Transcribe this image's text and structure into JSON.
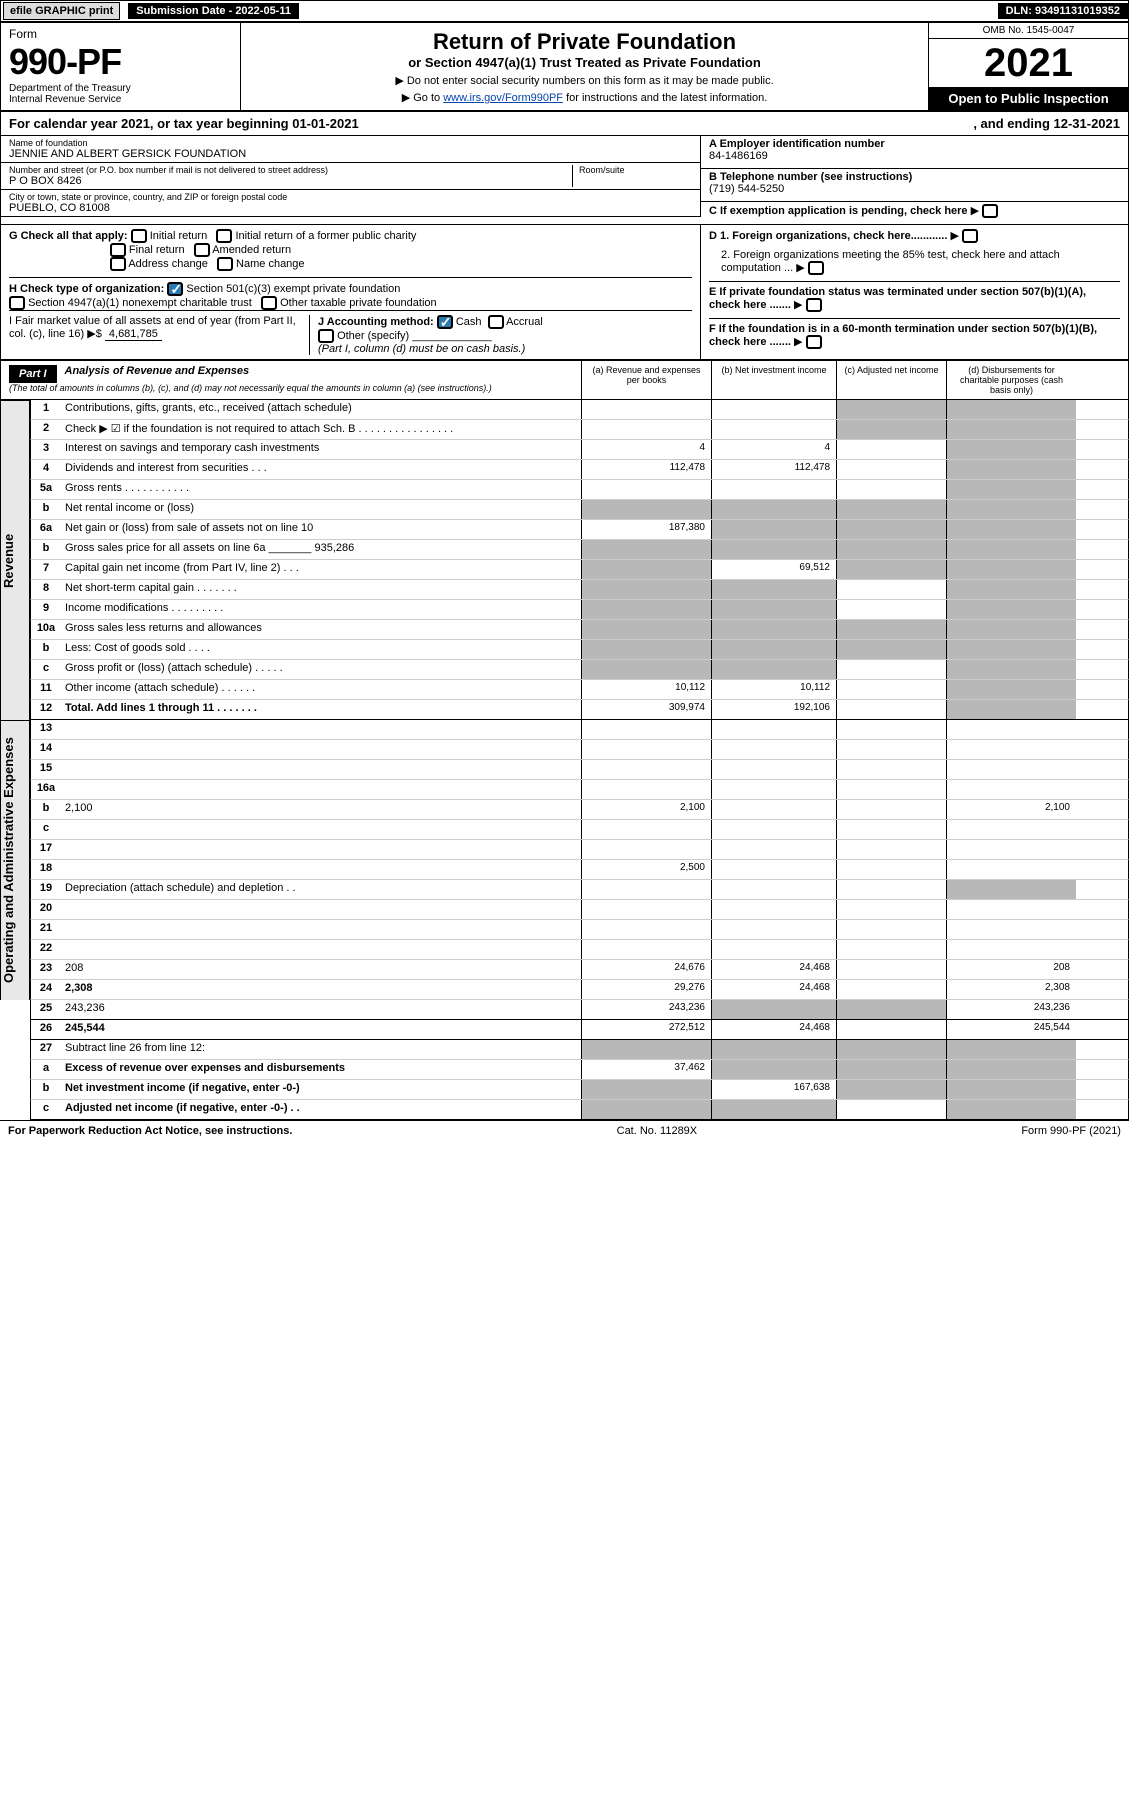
{
  "topbar": {
    "efile": "efile GRAPHIC print",
    "sublabel": "Submission Date - 2022-05-11",
    "dln": "DLN: 93491131019352"
  },
  "header": {
    "form_word": "Form",
    "form_num": "990-PF",
    "dept": "Department of the Treasury\nInternal Revenue Service",
    "title": "Return of Private Foundation",
    "subtitle": "or Section 4947(a)(1) Trust Treated as Private Foundation",
    "inst1": "▶ Do not enter social security numbers on this form as it may be made public.",
    "inst2": "▶ Go to ",
    "inst2_link": "www.irs.gov/Form990PF",
    "inst2_rest": " for instructions and the latest information.",
    "omb": "OMB No. 1545-0047",
    "year": "2021",
    "open": "Open to Public Inspection"
  },
  "calyear": {
    "a": "For calendar year 2021, or tax year beginning 01-01-2021",
    "b": ", and ending 12-31-2021"
  },
  "ident": {
    "name_label": "Name of foundation",
    "name": "JENNIE AND ALBERT GERSICK FOUNDATION",
    "street_label": "Number and street (or P.O. box number if mail is not delivered to street address)",
    "street": "P O BOX 8426",
    "room_label": "Room/suite",
    "city_label": "City or town, state or province, country, and ZIP or foreign postal code",
    "city": "PUEBLO, CO  81008",
    "ein_label": "A Employer identification number",
    "ein": "84-1486169",
    "tel_label": "B Telephone number (see instructions)",
    "tel": "(719) 544-5250",
    "c": "C If exemption application is pending, check here",
    "d1": "D 1. Foreign organizations, check here............",
    "d2": "2. Foreign organizations meeting the 85% test, check here and attach computation ...",
    "e": "E  If private foundation status was terminated under section 507(b)(1)(A), check here .......",
    "f": "F  If the foundation is in a 60-month termination under section 507(b)(1)(B), check here .......",
    "g_label": "G Check all that apply:",
    "g_opts": [
      "Initial return",
      "Initial return of a former public charity",
      "Final return",
      "Amended return",
      "Address change",
      "Name change"
    ],
    "h_label": "H Check type of organization:",
    "h1": "Section 501(c)(3) exempt private foundation",
    "h2": "Section 4947(a)(1) nonexempt charitable trust",
    "h3": "Other taxable private foundation",
    "i_label": "I Fair market value of all assets at end of year (from Part II, col. (c), line 16) ▶$",
    "i_val": "4,681,785",
    "j_label": "J Accounting method:",
    "j_cash": "Cash",
    "j_accrual": "Accrual",
    "j_other": "Other (specify)",
    "j_note": "(Part I, column (d) must be on cash basis.)"
  },
  "part1": {
    "label": "Part I",
    "title": "Analysis of Revenue and Expenses",
    "note": "(The total of amounts in columns (b), (c), and (d) may not necessarily equal the amounts in column (a) (see instructions).)",
    "colA": "(a)   Revenue and expenses per books",
    "colB": "(b)   Net investment income",
    "colC": "(c)   Adjusted net income",
    "colD": "(d)   Disbursements for charitable purposes (cash basis only)"
  },
  "side_labels": {
    "revenue": "Revenue",
    "expenses": "Operating and Administrative Expenses"
  },
  "rows": [
    {
      "n": "1",
      "d": "Contributions, gifts, grants, etc., received (attach schedule)",
      "a": "",
      "b": "",
      "cG": true,
      "dG": true
    },
    {
      "n": "2",
      "d": "Check ▶ ☑ if the foundation is not required to attach Sch. B  .  .  .  .  .  .  .  .  .  .  .  .  .  .  .  .",
      "a": "",
      "b": "",
      "cG": true,
      "dG": true,
      "greyAll": true
    },
    {
      "n": "3",
      "d": "Interest on savings and temporary cash investments",
      "a": "4",
      "b": "4",
      "cG": false,
      "dG": true
    },
    {
      "n": "4",
      "d": "Dividends and interest from securities   .   .   .",
      "a": "112,478",
      "b": "112,478",
      "cG": false,
      "dG": true
    },
    {
      "n": "5a",
      "d": "Gross rents   .   .   .   .   .   .   .   .   .   .   .",
      "a": "",
      "b": "",
      "cG": false,
      "dG": true
    },
    {
      "n": "b",
      "d": "Net rental income or (loss)  ",
      "a": "",
      "b": "",
      "aG": true,
      "bG": true,
      "cG": true,
      "dG": true
    },
    {
      "n": "6a",
      "d": "Net gain or (loss) from sale of assets not on line 10",
      "a": "187,380",
      "bG": true,
      "cG": true,
      "dG": true
    },
    {
      "n": "b",
      "d": "Gross sales price for all assets on line 6a _______ 935,286",
      "aG": true,
      "bG": true,
      "cG": true,
      "dG": true
    },
    {
      "n": "7",
      "d": "Capital gain net income (from Part IV, line 2)   .   .   .",
      "aG": true,
      "b": "69,512",
      "cG": true,
      "dG": true
    },
    {
      "n": "8",
      "d": "Net short-term capital gain   .   .   .   .   .   .   .",
      "aG": true,
      "bG": true,
      "cG": false,
      "dG": true
    },
    {
      "n": "9",
      "d": "Income modifications .   .   .   .   .   .   .   .   .",
      "aG": true,
      "bG": true,
      "cG": false,
      "dG": true
    },
    {
      "n": "10a",
      "d": "Gross sales less returns and allowances",
      "aG": true,
      "bG": true,
      "cG": true,
      "dG": true
    },
    {
      "n": "b",
      "d": "Less: Cost of goods sold   .   .   .   .",
      "aG": true,
      "bG": true,
      "cG": true,
      "dG": true
    },
    {
      "n": "c",
      "d": "Gross profit or (loss) (attach schedule)   .   .   .   .   .",
      "aG": true,
      "bG": true,
      "cG": false,
      "dG": true
    },
    {
      "n": "11",
      "d": "Other income (attach schedule)   .   .   .   .   .   .",
      "a": "10,112",
      "b": "10,112",
      "cG": false,
      "dG": true
    },
    {
      "n": "12",
      "d": "Total. Add lines 1 through 11   .   .   .   .   .   .   .",
      "a": "309,974",
      "b": "192,106",
      "cG": false,
      "dG": true,
      "bold": true,
      "solid": true
    },
    {
      "n": "13",
      "d": "",
      "a": "",
      "b": "",
      "c": ""
    },
    {
      "n": "14",
      "d": "",
      "a": "",
      "b": "",
      "c": ""
    },
    {
      "n": "15",
      "d": "",
      "a": "",
      "b": "",
      "c": ""
    },
    {
      "n": "16a",
      "d": "",
      "a": "",
      "b": "",
      "c": ""
    },
    {
      "n": "b",
      "d": "2,100",
      "a": "2,100",
      "b": "",
      "c": ""
    },
    {
      "n": "c",
      "d": "",
      "a": "",
      "b": "",
      "c": ""
    },
    {
      "n": "17",
      "d": "",
      "a": "",
      "b": "",
      "c": ""
    },
    {
      "n": "18",
      "d": "",
      "a": "2,500",
      "b": "",
      "c": ""
    },
    {
      "n": "19",
      "d": "Depreciation (attach schedule) and depletion   .   .",
      "a": "",
      "b": "",
      "c": "",
      "dG": true
    },
    {
      "n": "20",
      "d": "",
      "a": "",
      "b": "",
      "c": ""
    },
    {
      "n": "21",
      "d": "",
      "a": "",
      "b": "",
      "c": ""
    },
    {
      "n": "22",
      "d": "",
      "a": "",
      "b": "",
      "c": ""
    },
    {
      "n": "23",
      "d": "208",
      "a": "24,676",
      "b": "24,468",
      "c": ""
    },
    {
      "n": "24",
      "d": "2,308",
      "a": "29,276",
      "b": "24,468",
      "c": "",
      "bold": true
    },
    {
      "n": "25",
      "d": "243,236",
      "a": "243,236",
      "bG": true,
      "cG": true,
      "solid": true
    },
    {
      "n": "26",
      "d": "245,544",
      "a": "272,512",
      "b": "24,468",
      "c": "",
      "bold": true,
      "solid": true
    },
    {
      "n": "27",
      "d": "Subtract line 26 from line 12:",
      "aG": true,
      "bG": true,
      "cG": true,
      "dG": true
    },
    {
      "n": "a",
      "d": "Excess of revenue over expenses and disbursements",
      "a": "37,462",
      "bG": true,
      "cG": true,
      "dG": true,
      "bold": true
    },
    {
      "n": "b",
      "d": "Net investment income (if negative, enter -0-)",
      "aG": true,
      "b": "167,638",
      "cG": true,
      "dG": true,
      "bold": true
    },
    {
      "n": "c",
      "d": "Adjusted net income (if negative, enter -0-)   .   .",
      "aG": true,
      "bG": true,
      "c": "",
      "dG": true,
      "bold": true,
      "solid": true
    }
  ],
  "footer": {
    "a": "For Paperwork Reduction Act Notice, see instructions.",
    "b": "Cat. No. 11289X",
    "c": "Form 990-PF (2021)"
  }
}
